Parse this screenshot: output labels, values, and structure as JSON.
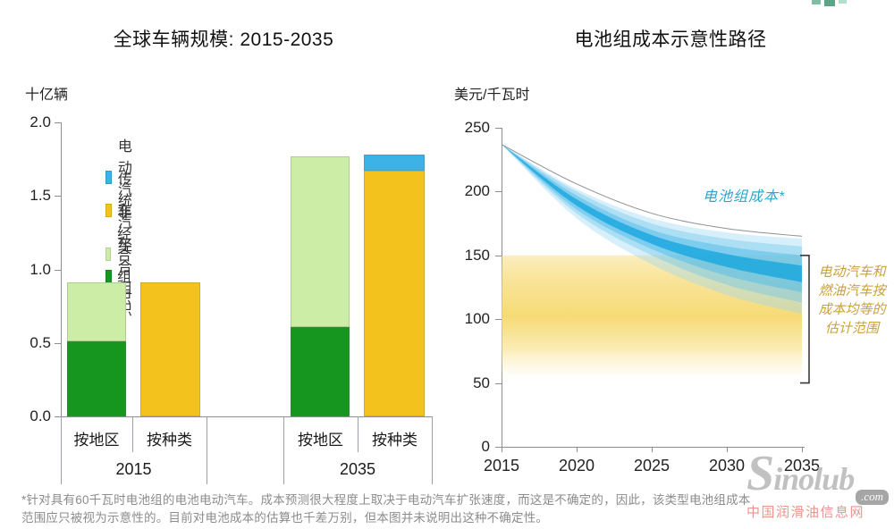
{
  "header": {
    "left_title": "全球车辆规模: 2015-2035",
    "right_title": "电池组成本示意性路径"
  },
  "chart_data": [
    {
      "type": "bar",
      "title": "全球车辆规模: 2015-2035",
      "ylabel": "十亿辆",
      "ylim": [
        0,
        2.0
      ],
      "yticks": [
        0.0,
        0.5,
        1.0,
        1.5,
        2.0
      ],
      "ytick_labels": [
        "0.0",
        "0.5",
        "1.0",
        "1.5",
        "2.0"
      ],
      "legend_position": "upper-left-inside",
      "legend": [
        {
          "label": "电动汽车",
          "color": "#3BB3E6"
        },
        {
          "label": "传统汽车",
          "color": "#F3C21D"
        },
        {
          "label": "非经合组织",
          "color": "#CBEDA6"
        },
        {
          "label": "经合组织",
          "color": "#17961F"
        }
      ],
      "groups": [
        {
          "year": "2015",
          "bars": [
            {
              "label": "按地区",
              "segments": [
                {
                  "name": "经合组织",
                  "value": 0.51
                },
                {
                  "name": "非经合组织",
                  "value": 0.4
                }
              ]
            },
            {
              "label": "按种类",
              "segments": [
                {
                  "name": "传统汽车",
                  "value": 0.91
                }
              ]
            }
          ]
        },
        {
          "year": "2035",
          "bars": [
            {
              "label": "按地区",
              "segments": [
                {
                  "name": "经合组织",
                  "value": 0.61
                },
                {
                  "name": "非经合组织",
                  "value": 1.16
                }
              ]
            },
            {
              "label": "按种类",
              "segments": [
                {
                  "name": "传统汽车",
                  "value": 1.67
                },
                {
                  "name": "电动汽车",
                  "value": 0.11
                }
              ]
            }
          ]
        }
      ]
    },
    {
      "type": "area",
      "title": "电池组成本示意性路径",
      "ylabel": "美元/千瓦时",
      "ylim": [
        0,
        250
      ],
      "yticks": [
        0,
        50,
        100,
        150,
        200,
        250
      ],
      "ytick_labels": [
        "0",
        "50",
        "100",
        "150",
        "200",
        "250"
      ],
      "x_years": [
        2015,
        2020,
        2025,
        2030,
        2035
      ],
      "xtick_labels": [
        "2015",
        "2020",
        "2025",
        "2030",
        "2035"
      ],
      "top_curve": {
        "values": [
          237,
          206,
          183,
          171,
          165
        ],
        "stroke": "#8c9196"
      },
      "bands": [
        {
          "name": "outer",
          "top": [
            237,
            202,
            179,
            168,
            163
          ],
          "bottom": [
            237,
            179,
            143,
            119,
            104
          ],
          "color": "#9AD6F2",
          "opacity": 0.4
        },
        {
          "name": "mid",
          "top": [
            237,
            200,
            175,
            163,
            157
          ],
          "bottom": [
            237,
            183,
            150,
            127,
            113
          ],
          "color": "#6CC6EC",
          "opacity": 0.4
        },
        {
          "name": "inner",
          "top": [
            237,
            197,
            170,
            157,
            150
          ],
          "bottom": [
            237,
            186,
            155,
            134,
            121
          ],
          "color": "#46B8E8",
          "opacity": 0.45
        },
        {
          "name": "core",
          "top": [
            237,
            194,
            166,
            151,
            142
          ],
          "bottom": [
            237,
            189,
            159,
            141,
            129
          ],
          "color": "#14A5DE",
          "opacity": 0.78
        }
      ],
      "parity_band": {
        "range": [
          50,
          150
        ],
        "fill": "#F5D45E",
        "label": "电动汽车和燃油汽车按成本均等的估计范围",
        "label_lines": [
          "电动汽车和",
          "燃油汽车按",
          "成本均等的",
          "估计范围"
        ],
        "label_color": "#C9A23B"
      },
      "battery_label": {
        "text": "电池组成本*",
        "color": "#2BA7CE"
      }
    }
  ],
  "footnote": {
    "line1": "*针对具有60千瓦时电池组的电池电动汽车。成本预测很大程度上取决于电动汽车扩张速度，而这是不确定的，因此，该类型电池组成本",
    "line2": "范围应只被视为示意性的。目前对电池成本的估算也千差万别，但本图并未说明出这种不确定性。"
  },
  "watermark": {
    "brand": "Sinolub",
    "domain": ".com",
    "caption": "中国润滑油信息网"
  }
}
